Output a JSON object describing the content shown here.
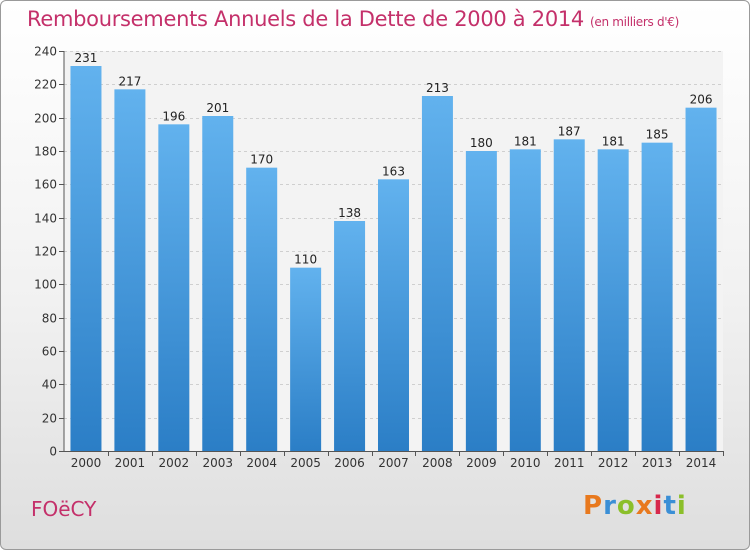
{
  "header": {
    "title": "Remboursements Annuels de la Dette de 2000 à 2014",
    "subtitle": "(en milliers d'€)"
  },
  "footer": {
    "commune": "FOëCY",
    "brand": "Proxiti"
  },
  "colors": {
    "title": "#c4306a",
    "bar_top": "#62b2ee",
    "bar_bottom": "#2b7ec6",
    "brand_letters": [
      "#e8791e",
      "#3b8fd6",
      "#8bbf2a",
      "#e8791e",
      "#d7284c",
      "#3b8fd6",
      "#8bbf2a"
    ]
  },
  "chart_data": {
    "type": "bar",
    "categories": [
      "2000",
      "2001",
      "2002",
      "2003",
      "2004",
      "2005",
      "2006",
      "2007",
      "2008",
      "2009",
      "2010",
      "2011",
      "2012",
      "2013",
      "2014"
    ],
    "values": [
      231,
      217,
      196,
      201,
      170,
      110,
      138,
      163,
      213,
      180,
      181,
      187,
      181,
      185,
      206
    ],
    "title": "Remboursements Annuels de la Dette de 2000 à 2014",
    "ylim": [
      0,
      240
    ],
    "yticks": [
      0,
      20,
      40,
      60,
      80,
      100,
      120,
      140,
      160,
      180,
      200,
      220,
      240
    ],
    "grid": true
  }
}
